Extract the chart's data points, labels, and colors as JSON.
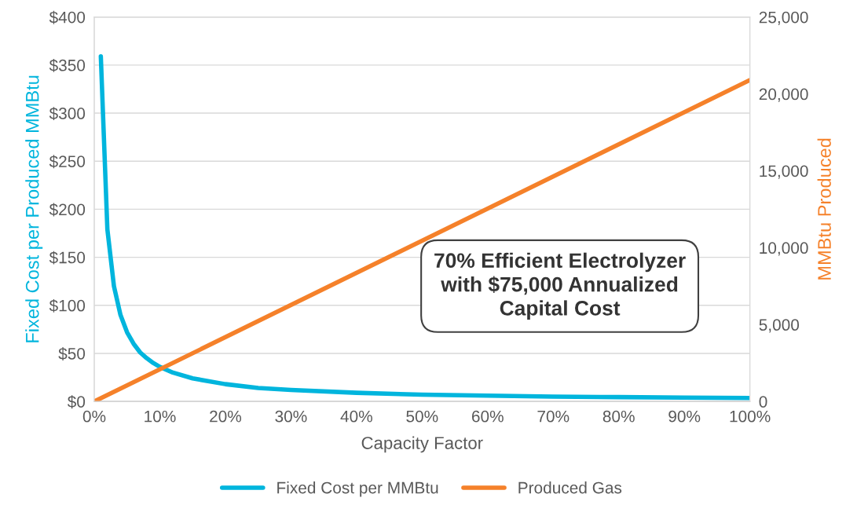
{
  "chart_data": {
    "type": "line",
    "xlabel": "Capacity Factor",
    "ylabel": "Fixed Cost per Produced MMBtu",
    "y2label": "MMBtu Produced",
    "series": [
      {
        "name": "Fixed Cost per MMBtu",
        "color": "#00b5dd",
        "x": [
          1,
          2,
          3,
          4,
          5,
          6,
          7,
          8,
          9,
          10,
          12,
          15,
          20,
          25,
          30,
          40,
          50,
          60,
          70,
          80,
          90,
          100
        ],
        "values": [
          359,
          179,
          120,
          90,
          72,
          60,
          51,
          45,
          40,
          36,
          30,
          24,
          18,
          14,
          12,
          9,
          7,
          6,
          5,
          4.5,
          4,
          3.6
        ]
      },
      {
        "name": "Produced Gas",
        "color": "#f5812a",
        "axis": "y2",
        "x": [
          0,
          50,
          100
        ],
        "values": [
          0,
          10450,
          20900
        ]
      }
    ],
    "xlim": [
      0,
      100
    ],
    "xticks": [
      {
        "value": 0,
        "label": "0%"
      },
      {
        "value": 10,
        "label": "10%"
      },
      {
        "value": 20,
        "label": "20%"
      },
      {
        "value": 30,
        "label": "30%"
      },
      {
        "value": 40,
        "label": "40%"
      },
      {
        "value": 50,
        "label": "50%"
      },
      {
        "value": 60,
        "label": "60%"
      },
      {
        "value": 70,
        "label": "70%"
      },
      {
        "value": 80,
        "label": "80%"
      },
      {
        "value": 90,
        "label": "90%"
      },
      {
        "value": 100,
        "label": "100%"
      }
    ],
    "ylim": [
      0,
      400
    ],
    "yticks": [
      {
        "value": 0,
        "label": "$0"
      },
      {
        "value": 50,
        "label": "$50"
      },
      {
        "value": 100,
        "label": "$100"
      },
      {
        "value": 150,
        "label": "$150"
      },
      {
        "value": 200,
        "label": "$200"
      },
      {
        "value": 250,
        "label": "$250"
      },
      {
        "value": 300,
        "label": "$300"
      },
      {
        "value": 350,
        "label": "$350"
      },
      {
        "value": 400,
        "label": "$400"
      }
    ],
    "y2lim": [
      0,
      25000
    ],
    "y2ticks": [
      0,
      {
        "value": 5000,
        "label": "5,000"
      },
      {
        "value": 10000,
        "label": "10,000"
      },
      {
        "value": 15000,
        "label": "15,000"
      },
      {
        "value": 20000,
        "label": "20,000"
      },
      {
        "value": 25000,
        "label": "25,000"
      }
    ],
    "annotations": [
      "70% Efficient Electrolyzer\nwith $75,000 Annualized\nCapital Cost"
    ],
    "grid": "y",
    "legend": "bottom",
    "marker": "none",
    "line_style": "solid"
  }
}
